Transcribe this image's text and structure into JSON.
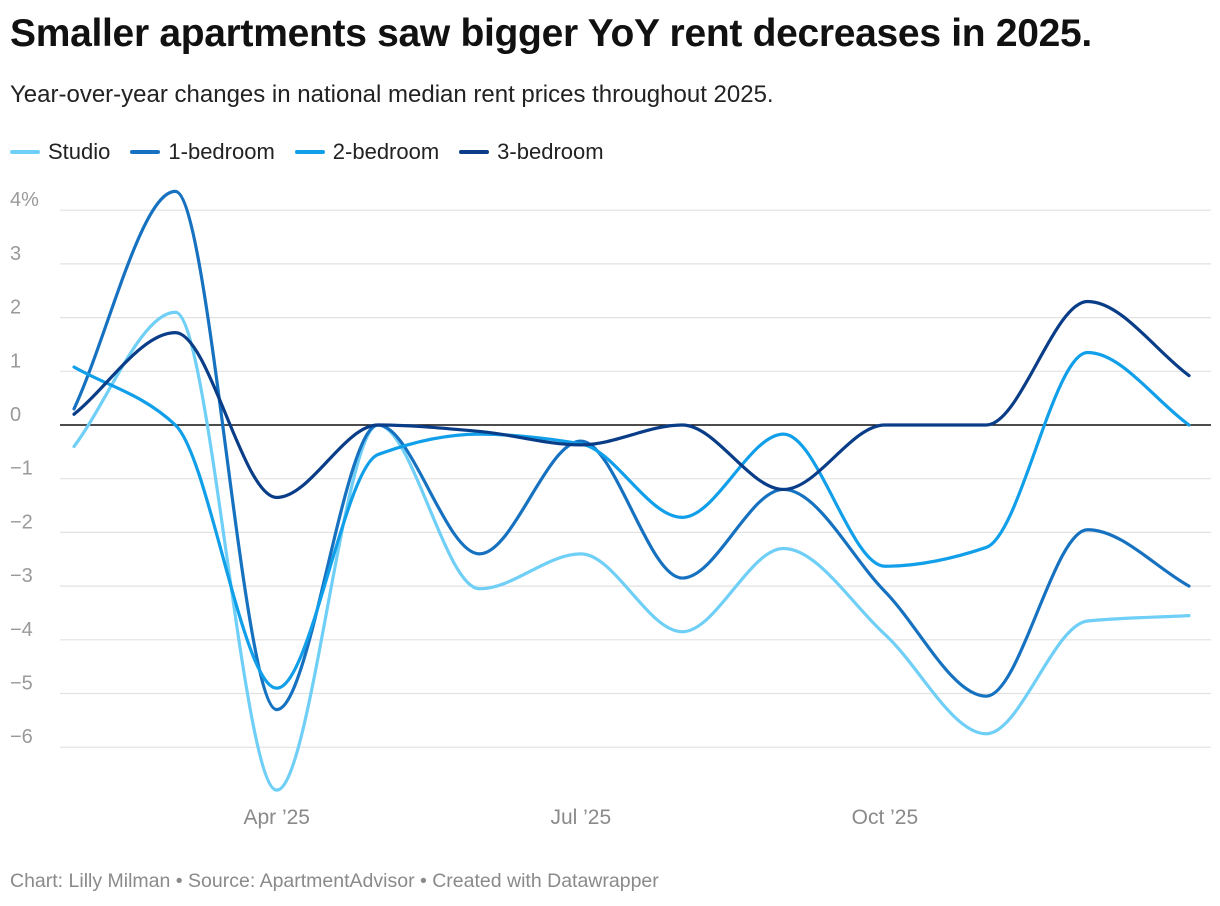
{
  "title": "Smaller apartments saw bigger YoY rent decreases in 2025.",
  "subtitle": "Year-over-year changes in national median rent prices throughout 2025.",
  "footer": "Chart: Lilly Milman • Source: ApartmentAdvisor • Created with Datawrapper",
  "chart_data": {
    "type": "line",
    "title": "Smaller apartments saw bigger YoY rent decreases in 2025.",
    "xlabel": "",
    "ylabel": "",
    "x": [
      0,
      1,
      2,
      3,
      4,
      5,
      6,
      7,
      8,
      9,
      10,
      11
    ],
    "x_ticks": [
      {
        "pos": 2.0,
        "label": "Apr ’25"
      },
      {
        "pos": 5.0,
        "label": "Jul ’25"
      },
      {
        "pos": 8.0,
        "label": "Oct ’25"
      }
    ],
    "xlim": [
      -0.1,
      11.2
    ],
    "ylim": [
      -6.9,
      4.4
    ],
    "y_ticks": [
      {
        "value": 4,
        "label": "4%"
      },
      {
        "value": 3,
        "label": "3"
      },
      {
        "value": 2,
        "label": "2"
      },
      {
        "value": 1,
        "label": "1"
      },
      {
        "value": 0,
        "label": "0"
      },
      {
        "value": -1,
        "label": "−1"
      },
      {
        "value": -2,
        "label": "−2"
      },
      {
        "value": -3,
        "label": "−3"
      },
      {
        "value": -4,
        "label": "−4"
      },
      {
        "value": -5,
        "label": "−5"
      },
      {
        "value": -6,
        "label": "−6"
      }
    ],
    "series": [
      {
        "name": "Studio",
        "color": "#6fcff6",
        "values": [
          -0.4,
          2.1,
          -6.8,
          0.0,
          -3.05,
          -2.4,
          -3.85,
          -2.3,
          -3.9,
          -5.75,
          -3.65,
          -3.55
        ]
      },
      {
        "name": "1-bedroom",
        "color": "#1672c0",
        "values": [
          0.3,
          4.35,
          -5.3,
          0.0,
          -2.4,
          -0.3,
          -2.85,
          -1.2,
          -3.1,
          -5.05,
          -1.95,
          -3.0
        ]
      },
      {
        "name": "2-bedroom",
        "color": "#119fea",
        "values": [
          1.08,
          0.0,
          -4.9,
          -0.55,
          -0.17,
          -0.35,
          -1.72,
          -0.17,
          -2.63,
          -2.28,
          1.35,
          0.0
        ]
      },
      {
        "name": "3-bedroom",
        "color": "#093d88",
        "values": [
          0.2,
          1.72,
          -1.35,
          0.0,
          -0.12,
          -0.37,
          0.0,
          -1.2,
          0.0,
          0.0,
          2.3,
          0.92
        ]
      }
    ]
  }
}
